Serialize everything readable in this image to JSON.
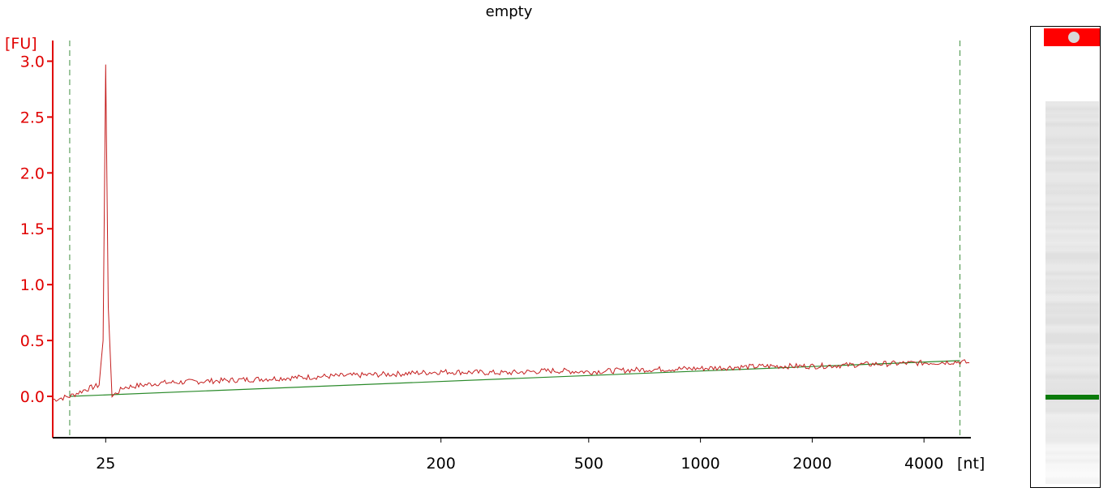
{
  "colors": {
    "trace": "#c41e1e",
    "axis_y": "#e00000",
    "axis_x": "#000000",
    "baseline": "#2a8a2a",
    "marker_lines": "#3f8f3f",
    "gel_marker": "#ff0000",
    "gel_band": "#0a7a0a"
  },
  "chart_data": {
    "type": "line",
    "title": "empty",
    "ylabel": "[FU]",
    "xlabel": "[nt]",
    "ylim": [
      -0.37,
      3.33
    ],
    "yticks": [
      0.0,
      0.5,
      1.0,
      1.5,
      2.0,
      2.5,
      3.0
    ],
    "ytick_labels": [
      "0.0",
      "0.5",
      "1.0",
      "1.5",
      "2.0",
      "2.5",
      "3.0"
    ],
    "xticks": [
      25,
      200,
      500,
      1000,
      2000,
      4000
    ],
    "xtick_labels": [
      "25",
      "200",
      "500",
      "1000",
      "2000",
      "4000"
    ],
    "marker_lines": [
      20,
      5000
    ],
    "baseline": {
      "x": [
        20,
        5000
      ],
      "y": [
        0.0,
        0.32
      ]
    },
    "series": [
      {
        "x": [
          18,
          20,
          22,
          24,
          24.6,
          25,
          25.4,
          26,
          28,
          35,
          60,
          100,
          150,
          200,
          300,
          400,
          500,
          700,
          1000,
          1500,
          2000,
          2500,
          3000,
          4000,
          5000,
          5300
        ],
        "y": [
          -0.03,
          0.0,
          0.06,
          0.1,
          0.5,
          2.97,
          0.8,
          0.0,
          0.08,
          0.12,
          0.15,
          0.18,
          0.2,
          0.22,
          0.21,
          0.23,
          0.22,
          0.24,
          0.25,
          0.27,
          0.27,
          0.28,
          0.29,
          0.3,
          0.31,
          0.3
        ]
      }
    ]
  },
  "gel": {
    "label": ""
  }
}
